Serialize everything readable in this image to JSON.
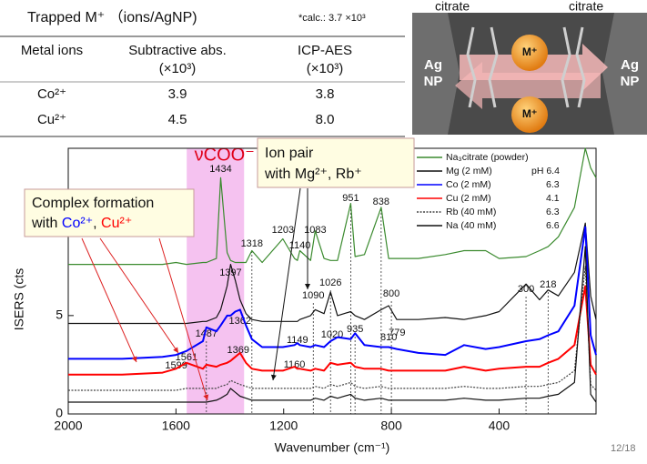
{
  "table": {
    "title": "Trapped M⁺ （ions/AgNP)",
    "note": "*calc.: 3.7 ×10³",
    "header": [
      [
        "Metal ions"
      ],
      [
        "Subtractive abs.",
        "(×10³)"
      ],
      [
        "ICP-AES",
        "(×10³)"
      ]
    ],
    "rows": [
      [
        "Co²⁺",
        "3.9",
        "3.8"
      ],
      [
        "Cu²⁺",
        "4.5",
        "8.0"
      ]
    ]
  },
  "diagram": {
    "labels_top": [
      "citrate",
      "citrate"
    ],
    "particles": [
      "Ag\nNP",
      "Ag\nNP"
    ],
    "ions": [
      "M⁺",
      "M⁺"
    ]
  },
  "callouts": [
    {
      "line1": "Complex formation",
      "line2": [
        "with ",
        "Co²⁺",
        ", ",
        "Cu²⁺"
      ]
    },
    {
      "line1": "Ion pair",
      "line2": [
        "with Mg²⁺, Rb⁺"
      ]
    }
  ],
  "page_number": "12/18",
  "chart_data": {
    "type": "line",
    "xlabel": "Wavenumber (cm⁻¹)",
    "ylabel": "ISERS (cts",
    "xlim": [
      2000,
      40
    ],
    "ylim": [
      0,
      13.5
    ],
    "xticks": [
      2000,
      1600,
      1200,
      800,
      400
    ],
    "yticks": [
      0,
      5,
      10
    ],
    "band": [
      1560,
      1347
    ],
    "band_label": "νCOO⁻",
    "peak_labels": [
      1434,
      1318,
      1203,
      1140,
      1083,
      951,
      838,
      1397,
      1090,
      1026,
      800,
      300,
      218,
      1487,
      1362,
      935,
      1149,
      1020,
      810,
      779,
      1599,
      1561,
      1369,
      1160
    ],
    "x": [
      2000,
      1800,
      1650,
      1600,
      1561,
      1500,
      1487,
      1450,
      1434,
      1410,
      1397,
      1380,
      1362,
      1340,
      1318,
      1280,
      1203,
      1160,
      1149,
      1140,
      1100,
      1083,
      1050,
      1026,
      1000,
      951,
      935,
      900,
      838,
      810,
      780,
      700,
      600,
      530,
      450,
      400,
      300,
      250,
      218,
      180,
      120,
      80,
      60,
      40
    ],
    "series": [
      {
        "name": "Na₃citrate (powder)",
        "color": "#3a8a2e",
        "values": [
          7.6,
          7.6,
          7.6,
          7.7,
          7.6,
          7.7,
          7.7,
          7.9,
          12.0,
          8.2,
          7.8,
          7.7,
          7.7,
          7.7,
          8.3,
          7.7,
          8.9,
          7.9,
          7.8,
          8.3,
          7.8,
          9.3,
          7.9,
          7.8,
          7.8,
          10.7,
          8.0,
          8.1,
          10.5,
          7.9,
          7.9,
          7.9,
          8.1,
          8.3,
          8.3,
          7.9,
          8.0,
          8.3,
          8.5,
          9.0,
          10.5,
          13.5,
          12.5,
          12.0
        ]
      },
      {
        "name": "Mg (2 mM)",
        "note": "pH 6.4",
        "color": "#111111",
        "values": [
          4.6,
          4.6,
          4.6,
          4.6,
          4.6,
          4.7,
          4.7,
          4.9,
          5.3,
          6.5,
          7.6,
          6.8,
          5.8,
          5.1,
          4.8,
          4.7,
          4.7,
          4.7,
          4.7,
          4.8,
          5.0,
          5.3,
          5.1,
          6.2,
          5.0,
          5.2,
          5.0,
          4.8,
          5.3,
          5.5,
          4.8,
          4.8,
          4.9,
          4.8,
          5.0,
          5.2,
          6.6,
          5.8,
          6.3,
          6.0,
          7.2,
          9.7,
          6.0,
          4.8
        ]
      },
      {
        "name": "Co (2 mM)",
        "note": "6.3",
        "color": "#0000ff",
        "values": [
          2.8,
          2.8,
          2.9,
          3.0,
          3.2,
          3.7,
          4.4,
          4.2,
          4.5,
          5.0,
          5.0,
          5.2,
          5.3,
          4.5,
          3.8,
          3.4,
          3.4,
          3.5,
          3.6,
          3.5,
          3.4,
          3.5,
          3.4,
          3.7,
          3.9,
          3.8,
          4.1,
          3.5,
          3.4,
          3.4,
          3.3,
          3.1,
          3.0,
          3.5,
          3.3,
          3.4,
          3.7,
          3.8,
          4.0,
          4.2,
          5.5,
          9.5,
          4.0,
          3.0
        ]
      },
      {
        "name": "Cu (2 mM)",
        "note": "4.1",
        "color": "#ff0000",
        "values": [
          2.0,
          2.0,
          2.1,
          2.3,
          2.6,
          2.3,
          2.5,
          2.4,
          2.5,
          2.6,
          2.7,
          2.9,
          3.1,
          2.6,
          2.3,
          2.2,
          2.2,
          2.4,
          2.3,
          2.3,
          2.2,
          2.3,
          2.2,
          2.6,
          2.5,
          2.6,
          2.4,
          2.3,
          2.3,
          2.2,
          2.2,
          2.2,
          2.2,
          2.4,
          2.2,
          2.3,
          2.4,
          2.4,
          2.6,
          2.8,
          3.5,
          6.5,
          2.5,
          2.0
        ]
      },
      {
        "name": "Rb (40 mM)",
        "note": "6.3",
        "color": "#444444",
        "dashed": true,
        "values": [
          1.2,
          1.2,
          1.2,
          1.2,
          1.3,
          1.3,
          1.3,
          1.3,
          1.4,
          1.5,
          1.7,
          1.6,
          1.5,
          1.4,
          1.3,
          1.3,
          1.3,
          1.3,
          1.3,
          1.3,
          1.3,
          1.4,
          1.3,
          1.5,
          1.4,
          1.6,
          1.4,
          1.3,
          1.4,
          1.3,
          1.3,
          1.3,
          1.3,
          1.4,
          1.3,
          1.3,
          1.4,
          1.4,
          1.5,
          1.6,
          2.2,
          7.5,
          1.5,
          1.2
        ]
      },
      {
        "name": "Na (40 mM)",
        "note": "6.6",
        "color": "#111111",
        "values": [
          0.6,
          0.6,
          0.6,
          0.6,
          0.6,
          0.6,
          0.6,
          0.7,
          0.8,
          1.0,
          1.3,
          1.1,
          0.9,
          0.8,
          0.7,
          0.7,
          0.7,
          0.7,
          0.7,
          0.7,
          0.7,
          0.8,
          0.7,
          0.9,
          0.8,
          1.0,
          0.8,
          0.7,
          0.8,
          0.7,
          0.7,
          0.7,
          0.7,
          0.8,
          0.7,
          0.7,
          0.8,
          0.8,
          0.9,
          1.0,
          1.6,
          8.5,
          1.0,
          0.6
        ]
      }
    ]
  }
}
